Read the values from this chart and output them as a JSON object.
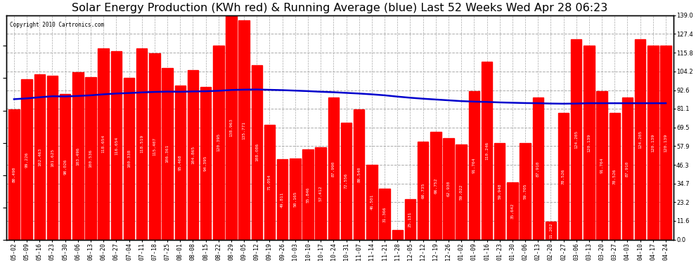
{
  "title": "Solar Energy Production (KWh red) & Running Average (blue) Last 52 Weeks Wed Apr 28 06:23",
  "copyright": "Copyright 2010 Cartronics.com",
  "bar_color": "#ff0000",
  "avg_line_color": "#0000cd",
  "background_color": "#ffffff",
  "grid_color": "#aaaaaa",
  "right_yticks": [
    0.0,
    11.6,
    23.2,
    34.7,
    46.3,
    57.9,
    69.5,
    81.1,
    92.6,
    104.2,
    115.8,
    127.4,
    139.0
  ],
  "categories": [
    "05-02",
    "05-09",
    "05-16",
    "05-23",
    "05-30",
    "06-06",
    "06-13",
    "06-20",
    "06-27",
    "07-04",
    "07-11",
    "07-18",
    "07-25",
    "08-01",
    "08-08",
    "08-15",
    "08-22",
    "08-29",
    "09-05",
    "09-12",
    "09-19",
    "09-26",
    "10-03",
    "10-10",
    "10-17",
    "10-24",
    "10-31",
    "11-07",
    "11-14",
    "11-21",
    "11-28",
    "12-05",
    "12-12",
    "12-19",
    "12-26",
    "01-02",
    "01-09",
    "01-16",
    "01-23",
    "01-30",
    "02-06",
    "02-13",
    "02-20",
    "02-27",
    "03-06",
    "03-13",
    "03-20",
    "03-27",
    "04-03",
    "04-10",
    "04-17",
    "04-24"
  ],
  "values": [
    80.49,
    99.226,
    102.463,
    101.625,
    90.026,
    103.496,
    100.536,
    118.654,
    116.654,
    100.338,
    118.519,
    115.407,
    106.361,
    95.468,
    104.865,
    94.395,
    120.395,
    138.963,
    135.771,
    108.086,
    71.054,
    49.811,
    50.165,
    55.846,
    57.412,
    87.99,
    72.556,
    80.54,
    46.501,
    31.366,
    6.079,
    25.131,
    60.735,
    66.752,
    62.93,
    59.022,
    91.764,
    110.246,
    59.948,
    35.642,
    59.705,
    87.91,
    11.202,
    78.526,
    124.205,
    120.139,
    91.764,
    78.526,
    87.91,
    124.205,
    120.139,
    120.139
  ],
  "running_avg": [
    87.0,
    87.5,
    88.2,
    88.8,
    88.7,
    89.0,
    89.4,
    90.0,
    90.5,
    90.8,
    91.2,
    91.5,
    91.7,
    91.6,
    91.8,
    91.9,
    92.2,
    92.7,
    92.9,
    93.0,
    92.8,
    92.6,
    92.3,
    92.0,
    91.6,
    91.3,
    90.9,
    90.5,
    90.0,
    89.4,
    88.6,
    87.9,
    87.3,
    86.8,
    86.3,
    85.8,
    85.5,
    85.3,
    85.0,
    84.8,
    84.6,
    84.5,
    84.3,
    84.2,
    84.3,
    84.5,
    84.5,
    84.5,
    84.5,
    84.5,
    84.5,
    84.5
  ],
  "ylim_max": 139.0,
  "title_fontsize": 11.5,
  "tick_fontsize": 6.0,
  "value_label_fontsize": 4.5
}
